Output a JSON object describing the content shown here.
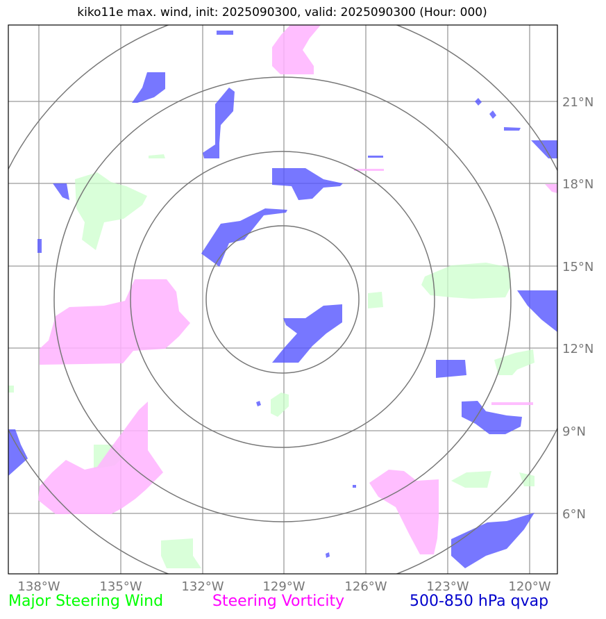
{
  "title": "kiko11e max. wind, init: 2025090300, valid: 2025090300 (Hour: 000)",
  "map": {
    "lon_ticks": [
      "138°W",
      "135°W",
      "132°W",
      "129°W",
      "126°W",
      "123°W",
      "120°W"
    ],
    "lat_ticks": [
      "21°N",
      "18°N",
      "15°N",
      "12°N",
      "9°N",
      "6°N"
    ],
    "center": "129°W 13.8°N",
    "colors": {
      "steering_wind": "#ccffcc",
      "steering_vorticity": "#ffb3ff",
      "qvap": "#6666ff",
      "grid": "#888888",
      "range_rings": "#777777"
    }
  },
  "legend": {
    "steering_wind": "Major Steering Wind",
    "steering_vorticity": "Steering Vorticity",
    "qvap": "500-850 hPa qvap"
  }
}
